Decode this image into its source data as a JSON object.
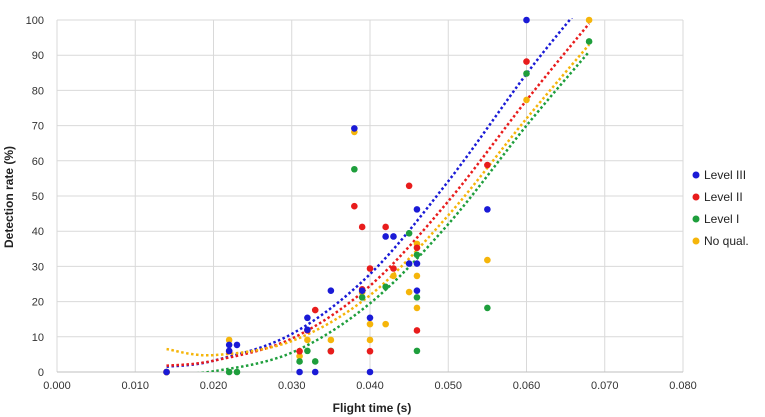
{
  "chart_data": {
    "type": "scatter",
    "xlabel": "Flight time (s)",
    "ylabel": "Detection rate (%)",
    "xlim": [
      0,
      0.08
    ],
    "ylim": [
      0,
      100
    ],
    "x_ticks": [
      "0.000",
      "0.010",
      "0.020",
      "0.030",
      "0.040",
      "0.050",
      "0.060",
      "0.070",
      "0.080"
    ],
    "y_ticks": [
      "0",
      "10",
      "20",
      "30",
      "40",
      "50",
      "60",
      "70",
      "80",
      "90",
      "100"
    ],
    "grid": true,
    "legend_position": "right",
    "trendline": "polynomial (dotted)",
    "series": [
      {
        "name": "Level III",
        "color": "#1a1ad6",
        "points": [
          [
            0.014,
            0
          ],
          [
            0.022,
            7.7
          ],
          [
            0.022,
            6
          ],
          [
            0.023,
            7.7
          ],
          [
            0.031,
            0
          ],
          [
            0.032,
            15.4
          ],
          [
            0.032,
            12
          ],
          [
            0.033,
            0
          ],
          [
            0.035,
            23.1
          ],
          [
            0.038,
            69.2
          ],
          [
            0.039,
            23.1
          ],
          [
            0.04,
            15.4
          ],
          [
            0.04,
            0
          ],
          [
            0.042,
            38.5
          ],
          [
            0.043,
            38.5
          ],
          [
            0.045,
            30.8
          ],
          [
            0.046,
            46.2
          ],
          [
            0.046,
            30.8
          ],
          [
            0.046,
            23.1
          ],
          [
            0.055,
            46.2
          ],
          [
            0.06,
            100
          ]
        ],
        "trend": [
          [
            0.014,
            1.5
          ],
          [
            0.02,
            3.2
          ],
          [
            0.03,
            10.8
          ],
          [
            0.04,
            27.8
          ],
          [
            0.05,
            54.2
          ],
          [
            0.06,
            84.7
          ],
          [
            0.067,
            104
          ]
        ]
      },
      {
        "name": "Level II",
        "color": "#e81c1c",
        "points": [
          [
            0.014,
            0
          ],
          [
            0.022,
            5.9
          ],
          [
            0.031,
            5.9
          ],
          [
            0.032,
            11.8
          ],
          [
            0.033,
            17.6
          ],
          [
            0.035,
            5.9
          ],
          [
            0.038,
            47.1
          ],
          [
            0.039,
            41.2
          ],
          [
            0.039,
            23.5
          ],
          [
            0.04,
            29.4
          ],
          [
            0.04,
            5.9
          ],
          [
            0.042,
            41.2
          ],
          [
            0.043,
            29.4
          ],
          [
            0.045,
            52.9
          ],
          [
            0.046,
            35.3
          ],
          [
            0.046,
            11.8
          ],
          [
            0.055,
            58.8
          ],
          [
            0.06,
            88.2
          ]
        ],
        "trend": [
          [
            0.014,
            1.8
          ],
          [
            0.02,
            3.2
          ],
          [
            0.03,
            9.5
          ],
          [
            0.04,
            24.5
          ],
          [
            0.05,
            48.5
          ],
          [
            0.06,
            77.2
          ],
          [
            0.068,
            99
          ]
        ]
      },
      {
        "name": "Level I",
        "color": "#1e9e3c",
        "points": [
          [
            0.014,
            0
          ],
          [
            0.022,
            0
          ],
          [
            0.023,
            0
          ],
          [
            0.031,
            3
          ],
          [
            0.032,
            6
          ],
          [
            0.033,
            3
          ],
          [
            0.035,
            6
          ],
          [
            0.038,
            57.6
          ],
          [
            0.039,
            21.2
          ],
          [
            0.042,
            24.2
          ],
          [
            0.045,
            39.4
          ],
          [
            0.046,
            33.3
          ],
          [
            0.046,
            21.2
          ],
          [
            0.046,
            6
          ],
          [
            0.055,
            18.2
          ],
          [
            0.06,
            84.8
          ],
          [
            0.068,
            93.9
          ]
        ],
        "trend": [
          [
            0.014,
            -0.5
          ],
          [
            0.02,
            0.2
          ],
          [
            0.03,
            5.5
          ],
          [
            0.04,
            19.5
          ],
          [
            0.05,
            42
          ],
          [
            0.06,
            70
          ],
          [
            0.068,
            91
          ]
        ]
      },
      {
        "name": "No qual.",
        "color": "#f5b50a",
        "points": [
          [
            0.014,
            0
          ],
          [
            0.022,
            9.1
          ],
          [
            0.031,
            4.5
          ],
          [
            0.032,
            9.1
          ],
          [
            0.035,
            9.1
          ],
          [
            0.038,
            68.2
          ],
          [
            0.039,
            22.7
          ],
          [
            0.04,
            13.6
          ],
          [
            0.04,
            9.1
          ],
          [
            0.042,
            13.6
          ],
          [
            0.043,
            27.3
          ],
          [
            0.045,
            22.7
          ],
          [
            0.046,
            36.4
          ],
          [
            0.046,
            27.3
          ],
          [
            0.046,
            18.2
          ],
          [
            0.055,
            31.8
          ],
          [
            0.06,
            77.3
          ],
          [
            0.068,
            100
          ]
        ],
        "trend": [
          [
            0.014,
            6.5
          ],
          [
            0.02,
            4.8
          ],
          [
            0.03,
            8.8
          ],
          [
            0.04,
            21.8
          ],
          [
            0.05,
            44.5
          ],
          [
            0.06,
            72
          ],
          [
            0.068,
            93
          ]
        ]
      }
    ]
  }
}
